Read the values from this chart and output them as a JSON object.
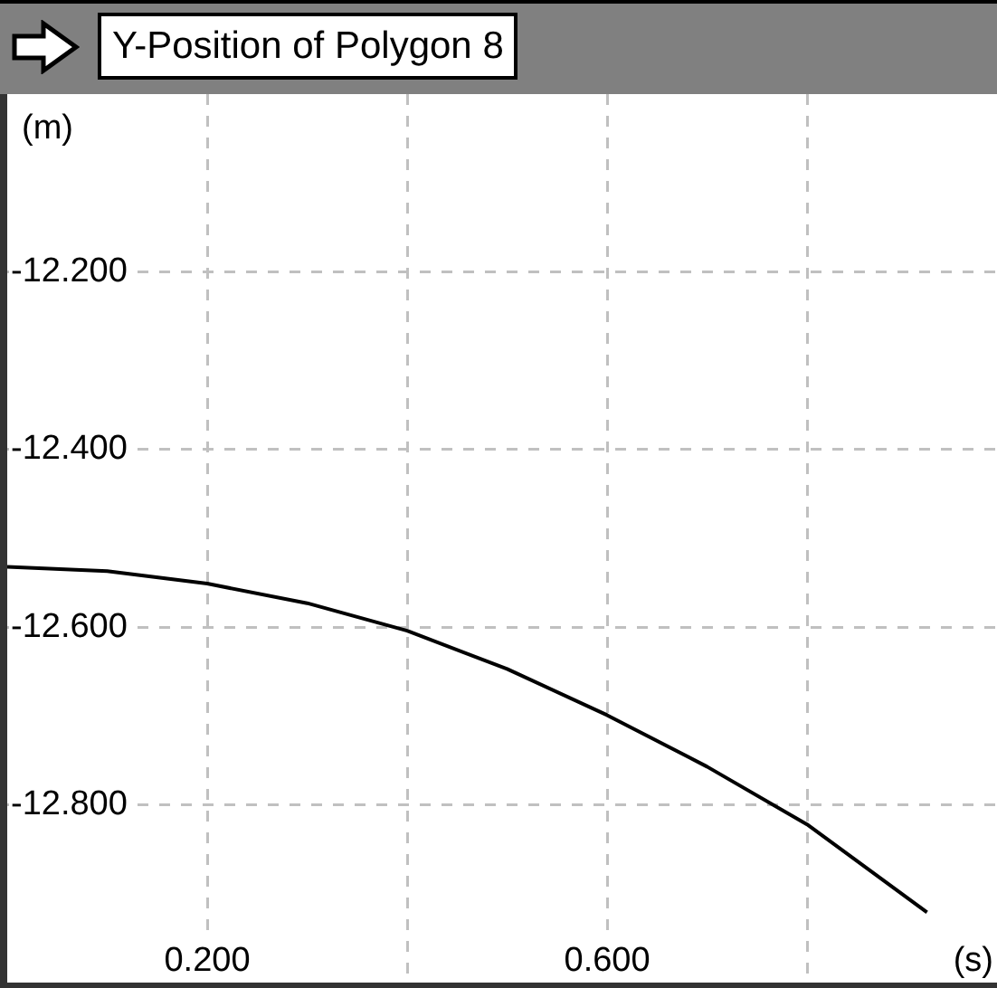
{
  "chart_data": {
    "type": "line",
    "title": "Y-Position of Polygon 8",
    "xlabel": "(s)",
    "ylabel": "(m)",
    "x": [
      0,
      0.1,
      0.2,
      0.3,
      0.4,
      0.5,
      0.6,
      0.7,
      0.8,
      0.92
    ],
    "series": [
      {
        "color": "#000000",
        "values": [
          -12.532,
          -12.537,
          -12.551,
          -12.573,
          -12.604,
          -12.647,
          -12.699,
          -12.757,
          -12.822,
          -12.921
        ]
      }
    ],
    "xlim": [
      0,
      0.99
    ],
    "ylim": [
      -13.0,
      -12.0
    ],
    "xticks": [
      {
        "value": 0.2,
        "label": "0.200"
      },
      {
        "value": 0.4,
        "label": null
      },
      {
        "value": 0.6,
        "label": "0.600"
      },
      {
        "value": 0.8,
        "label": null
      }
    ],
    "yticks": [
      {
        "value": -12.2,
        "label": "-12.200"
      },
      {
        "value": -12.4,
        "label": "-12.400"
      },
      {
        "value": -12.6,
        "label": "-12.600"
      },
      {
        "value": -12.8,
        "label": "-12.800"
      }
    ],
    "grid": true,
    "legend": false,
    "line_style": "solid",
    "marker": "none"
  }
}
